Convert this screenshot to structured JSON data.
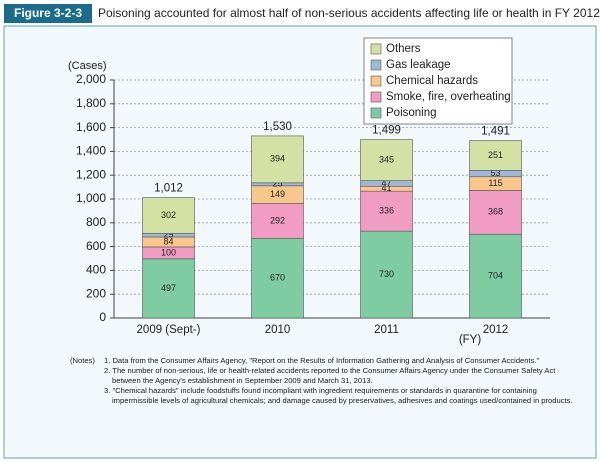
{
  "figure_label": "Figure 3-2-3",
  "chart_data": {
    "type": "stacked_bar",
    "title": "Poisoning accounted for almost half of non-serious accidents affecting life or health in FY 2012",
    "y_label": "(Cases)",
    "x_unit": "(FY)",
    "categories": [
      "2009 (Sept-)",
      "2010",
      "2011",
      "2012"
    ],
    "series": [
      {
        "name": "Poisoning",
        "color": "#7fcba2",
        "values": [
          497,
          670,
          730,
          704
        ]
      },
      {
        "name": "Smoke, fire, overheating",
        "color": "#f19cc3",
        "values": [
          100,
          292,
          336,
          368
        ]
      },
      {
        "name": "Chemical hazards",
        "color": "#f8c78c",
        "values": [
          84,
          149,
          41,
          115
        ]
      },
      {
        "name": "Gas leakage",
        "color": "#9db8da",
        "values": [
          29,
          25,
          47,
          53
        ]
      },
      {
        "name": "Others",
        "color": "#d3e2a4",
        "values": [
          302,
          394,
          345,
          251
        ]
      }
    ],
    "totals": [
      1012,
      1530,
      1499,
      1491
    ],
    "total_labels": [
      "1,012",
      "1,530",
      "1,499",
      "1,491"
    ],
    "ylim": [
      0,
      2000
    ],
    "yticks": [
      0,
      200,
      400,
      600,
      800,
      {
        "value": 1000,
        "label": "1,000"
      },
      {
        "value": 1200,
        "label": "1,200"
      },
      {
        "value": 1400,
        "label": "1,400"
      },
      {
        "value": 1600,
        "label": "1,600"
      },
      {
        "value": 1800,
        "label": "1,800"
      },
      {
        "value": 2000,
        "label": "2,000"
      }
    ],
    "grid": true,
    "legend": "top-right"
  },
  "notes": {
    "label": "(Notes)",
    "items": [
      "1. Data from the Consumer Affairs Agency, \"Report on the Results of Information Gathering and Analysis of Consumer Accidents.\"",
      "2. The number of non-serious, life or health-related accidents reported to the Consumer Affairs Agency under the Consumer Safety Act between the Agency's establishment in September 2009 and March 31, 2013.",
      "3. \"Chemical hazards\" include foodstuffs found incompliant with ingredient requirements or standards in quarantine for containing impermissible levels of agricultural chemicals; and damage caused by preservatives, adhesives and coatings used/contained in products."
    ]
  }
}
